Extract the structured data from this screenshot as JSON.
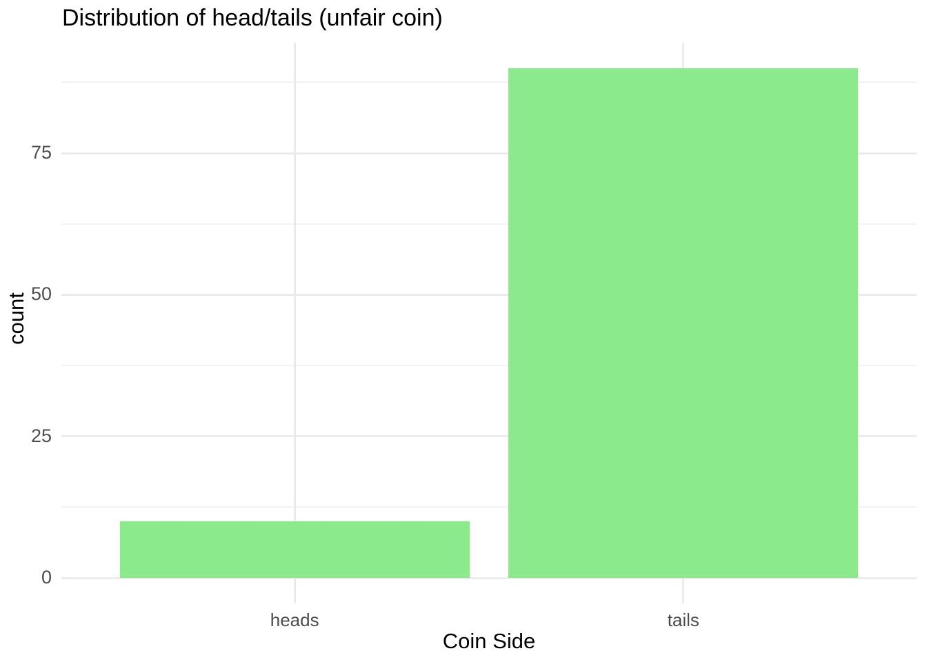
{
  "title": "Distribution of head/tails (unfair coin)",
  "colors": {
    "background": "#FFFFFF",
    "bar_fill": "#8BEA8B",
    "grid_major": "#EBEBEB",
    "grid_minor": "#F2F2F2",
    "tick_label": "#4D4D4D",
    "title_text": "#000000"
  },
  "chart_data": {
    "type": "bar",
    "title": "Distribution of head/tails (unfair coin)",
    "xlabel": "Coin Side",
    "ylabel": "count",
    "categories": [
      "heads",
      "tails"
    ],
    "values": [
      10,
      90
    ],
    "y_ticks": [
      0,
      25,
      50,
      75
    ],
    "y_tick_labels": [
      "0",
      "25",
      "50",
      "75"
    ],
    "y_minor_ticks": [
      12.5,
      37.5,
      62.5,
      87.5
    ],
    "ylim": [
      -4.5,
      94.5
    ],
    "grid": "on",
    "legend": "none",
    "bar_width_fraction": 0.9,
    "bar_color_hex": "#8BEA8B"
  }
}
